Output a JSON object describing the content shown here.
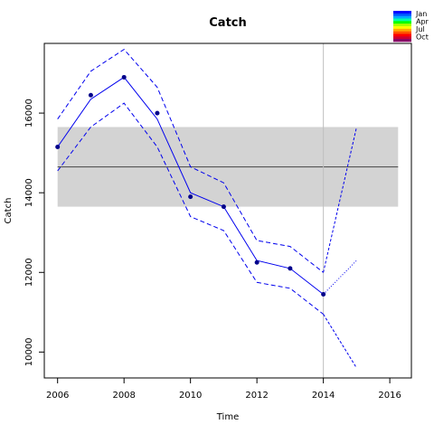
{
  "chart_data": {
    "type": "line",
    "title": "Catch",
    "xlabel": "Time",
    "ylabel": "Catch",
    "xlim": [
      2005.6,
      2016.65
    ],
    "ylim": [
      9350,
      17750
    ],
    "x_ticks": [
      2006,
      2008,
      2010,
      2012,
      2014,
      2016
    ],
    "y_ticks": [
      10000,
      12000,
      14000,
      16000
    ],
    "reference": {
      "mean": 14650,
      "band_low": 13650,
      "band_high": 15650,
      "x_start": 2006,
      "x_end": 2016.25
    },
    "vline_x": 2014,
    "observed": {
      "x": [
        2006,
        2007,
        2008,
        2009,
        2010,
        2011,
        2012,
        2013,
        2014
      ],
      "y": [
        15150,
        16450,
        16900,
        16000,
        13900,
        13650,
        12250,
        12100,
        11450
      ]
    },
    "fit": {
      "x": [
        2006,
        2007,
        2008,
        2009,
        2010,
        2011,
        2012,
        2013,
        2014
      ],
      "y": [
        15150,
        16350,
        16900,
        15850,
        14000,
        13650,
        12300,
        12100,
        11450
      ]
    },
    "upper": {
      "x": [
        2006,
        2007,
        2008,
        2009,
        2010,
        2011,
        2012,
        2013,
        2014
      ],
      "y": [
        15850,
        17050,
        17600,
        16650,
        14650,
        14250,
        12800,
        12650,
        12000
      ]
    },
    "lower": {
      "x": [
        2006,
        2007,
        2008,
        2009,
        2010,
        2011,
        2012,
        2013,
        2014
      ],
      "y": [
        14550,
        15650,
        16250,
        15150,
        13400,
        13050,
        11750,
        11600,
        10950
      ]
    },
    "forecast_upper": {
      "x": [
        2014,
        2015
      ],
      "y": [
        12000,
        15650
      ]
    },
    "forecast_mid": {
      "x": [
        2014,
        2015
      ],
      "y": [
        11450,
        12300
      ]
    },
    "forecast_lower": {
      "x": [
        2014,
        2015
      ],
      "y": [
        10950,
        9600
      ]
    },
    "colors": {
      "series": "#0000ee",
      "band": "#d3d3d3",
      "mean_line": "#555555",
      "vline": "#bfbfbf"
    },
    "legend": {
      "position": "top-right",
      "labels": [
        "Jan",
        "Apr",
        "Jul",
        "Oct"
      ],
      "swatches": [
        "#0000ff",
        "#0055ff",
        "#00aaff",
        "#00ffaa",
        "#00ff00",
        "#aaff00",
        "#ffff00",
        "#ffaa00",
        "#ff5500",
        "#ff0000",
        "#cc0033",
        "#880066"
      ]
    }
  }
}
